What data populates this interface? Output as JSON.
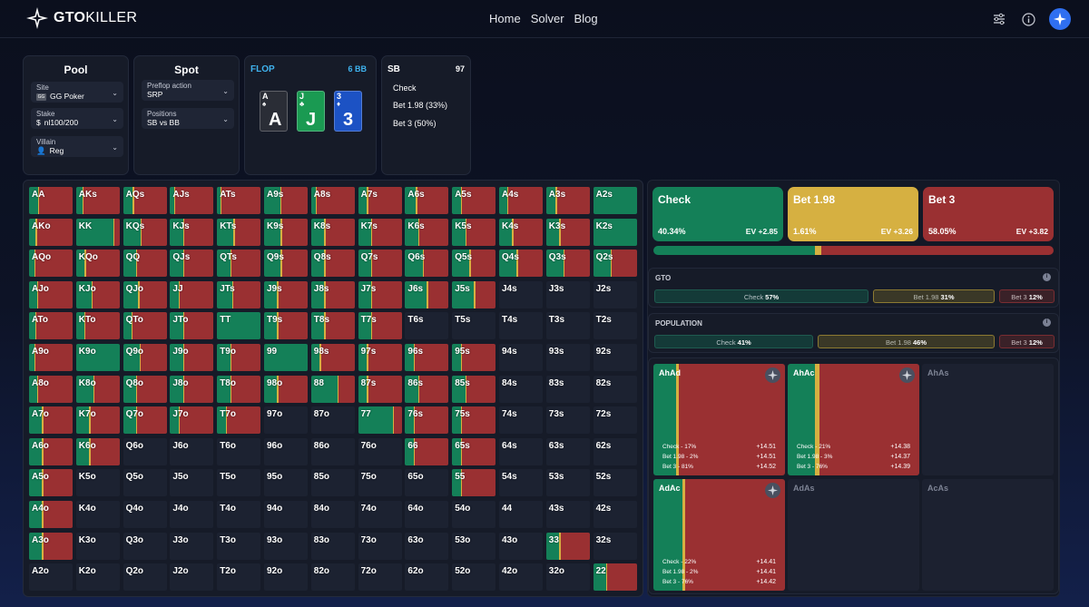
{
  "nav": {
    "logo_bold": "GTO",
    "logo_rest": "KILLER",
    "links": [
      "Home",
      "Solver",
      "Blog"
    ],
    "icons": [
      "sliders-icon",
      "info-icon",
      "avatar-icon"
    ]
  },
  "pool": {
    "title": "Pool",
    "site_label": "Site",
    "site": "GG Poker",
    "stake_label": "Stake",
    "stake": "nl100/200",
    "villain_label": "Villain",
    "villain": "Reg"
  },
  "spot": {
    "title": "Spot",
    "preflop_label": "Preflop action",
    "preflop": "SRP",
    "positions_label": "Positions",
    "positions": "SB vs BB"
  },
  "flop": {
    "title": "FLOP",
    "pot": "6 BB",
    "cards": [
      {
        "rank": "A",
        "suit": "♠",
        "color": "#2a2d36"
      },
      {
        "rank": "J",
        "suit": "♣",
        "color": "#1a9a52"
      },
      {
        "rank": "3",
        "suit": "♦",
        "color": "#1c52c4"
      }
    ]
  },
  "sb": {
    "title": "SB",
    "count": "97",
    "actions": [
      "Check",
      "Bet 1.98 (33%)",
      "Bet 3 (50%)"
    ]
  },
  "colors": {
    "check": "#148058",
    "bet198": "#d6b041",
    "bet3": "#9a3032",
    "empty": "#1c2231"
  },
  "hand_grid": {
    "ranks": [
      "A",
      "K",
      "Q",
      "J",
      "T",
      "9",
      "8",
      "7",
      "6",
      "5",
      "4",
      "3",
      "2"
    ],
    "rows": [
      [
        [
          20,
          2,
          78
        ],
        [
          15,
          3,
          82
        ],
        [
          22,
          3,
          75
        ],
        [
          10,
          2,
          88
        ],
        [
          8,
          2,
          90
        ],
        [
          38,
          2,
          60
        ],
        [
          10,
          2,
          88
        ],
        [
          20,
          3,
          77
        ],
        [
          25,
          3,
          72
        ],
        [
          20,
          3,
          77
        ],
        [
          18,
          3,
          79
        ],
        [
          22,
          3,
          75
        ],
        [
          100,
          0,
          0
        ]
      ],
      [
        [
          15,
          3,
          82
        ],
        [
          85,
          2,
          13
        ],
        [
          40,
          3,
          57
        ],
        [
          30,
          3,
          67
        ],
        [
          38,
          3,
          59
        ],
        [
          38,
          3,
          59
        ],
        [
          30,
          3,
          67
        ],
        [
          30,
          3,
          67
        ],
        [
          30,
          3,
          67
        ],
        [
          30,
          3,
          67
        ],
        [
          30,
          3,
          67
        ],
        [
          30,
          3,
          67
        ],
        [
          100,
          0,
          0
        ]
      ],
      [
        [
          12,
          2,
          86
        ],
        [
          20,
          3,
          77
        ],
        [
          30,
          3,
          67
        ],
        [
          30,
          3,
          67
        ],
        [
          30,
          3,
          67
        ],
        [
          38,
          3,
          59
        ],
        [
          30,
          3,
          67
        ],
        [
          30,
          3,
          67
        ],
        [
          40,
          3,
          57
        ],
        [
          40,
          3,
          57
        ],
        [
          40,
          3,
          57
        ],
        [
          40,
          3,
          57
        ],
        [
          40,
          3,
          57
        ]
      ],
      [
        [
          18,
          2,
          80
        ],
        [
          35,
          3,
          62
        ],
        [
          35,
          3,
          62
        ],
        [
          20,
          3,
          77
        ],
        [
          35,
          3,
          62
        ],
        [
          30,
          3,
          67
        ],
        [
          30,
          3,
          67
        ],
        [
          30,
          3,
          67
        ],
        [
          50,
          3,
          47
        ],
        [
          50,
          3,
          47
        ],
        [
          0,
          0,
          0
        ],
        [
          0,
          0,
          0
        ],
        [
          0,
          0,
          0
        ]
      ],
      [
        [
          15,
          2,
          83
        ],
        [
          20,
          2,
          78
        ],
        [
          20,
          2,
          78
        ],
        [
          30,
          3,
          67
        ],
        [
          100,
          0,
          0
        ],
        [
          30,
          3,
          67
        ],
        [
          30,
          3,
          67
        ],
        [
          30,
          3,
          67
        ],
        [
          0,
          0,
          0
        ],
        [
          0,
          0,
          0
        ],
        [
          0,
          0,
          0
        ],
        [
          0,
          0,
          0
        ],
        [
          0,
          0,
          0
        ]
      ],
      [
        [
          12,
          2,
          86
        ],
        [
          100,
          0,
          0
        ],
        [
          38,
          3,
          59
        ],
        [
          30,
          3,
          67
        ],
        [
          30,
          3,
          67
        ],
        [
          100,
          0,
          0
        ],
        [
          20,
          3,
          77
        ],
        [
          20,
          3,
          77
        ],
        [
          20,
          3,
          77
        ],
        [
          20,
          3,
          77
        ],
        [
          0,
          0,
          0
        ],
        [
          0,
          0,
          0
        ],
        [
          0,
          0,
          0
        ]
      ],
      [
        [
          18,
          2,
          80
        ],
        [
          40,
          3,
          57
        ],
        [
          30,
          3,
          67
        ],
        [
          30,
          3,
          67
        ],
        [
          30,
          3,
          67
        ],
        [
          30,
          3,
          67
        ],
        [
          60,
          3,
          37
        ],
        [
          20,
          3,
          77
        ],
        [
          30,
          3,
          67
        ],
        [
          30,
          3,
          67
        ],
        [
          0,
          0,
          0
        ],
        [
          0,
          0,
          0
        ],
        [
          0,
          0,
          0
        ]
      ],
      [
        [
          30,
          3,
          67
        ],
        [
          30,
          3,
          67
        ],
        [
          30,
          3,
          67
        ],
        [
          20,
          3,
          77
        ],
        [
          20,
          3,
          77
        ],
        [
          0,
          0,
          0
        ],
        [
          0,
          0,
          0
        ],
        [
          80,
          3,
          17
        ],
        [
          20,
          3,
          77
        ],
        [
          20,
          3,
          77
        ],
        [
          0,
          0,
          0
        ],
        [
          0,
          0,
          0
        ],
        [
          0,
          0,
          0
        ]
      ],
      [
        [
          30,
          3,
          67
        ],
        [
          30,
          3,
          67
        ],
        [
          0,
          0,
          0
        ],
        [
          0,
          0,
          0
        ],
        [
          0,
          0,
          0
        ],
        [
          0,
          0,
          0
        ],
        [
          0,
          0,
          0
        ],
        [
          0,
          0,
          0
        ],
        [
          20,
          3,
          77
        ],
        [
          20,
          3,
          77
        ],
        [
          0,
          0,
          0
        ],
        [
          0,
          0,
          0
        ],
        [
          0,
          0,
          0
        ]
      ],
      [
        [
          30,
          3,
          67
        ],
        [
          0,
          0,
          0
        ],
        [
          0,
          0,
          0
        ],
        [
          0,
          0,
          0
        ],
        [
          0,
          0,
          0
        ],
        [
          0,
          0,
          0
        ],
        [
          0,
          0,
          0
        ],
        [
          0,
          0,
          0
        ],
        [
          0,
          0,
          0
        ],
        [
          20,
          3,
          77
        ],
        [
          0,
          0,
          0
        ],
        [
          0,
          0,
          0
        ],
        [
          0,
          0,
          0
        ]
      ],
      [
        [
          30,
          3,
          67
        ],
        [
          0,
          0,
          0
        ],
        [
          0,
          0,
          0
        ],
        [
          0,
          0,
          0
        ],
        [
          0,
          0,
          0
        ],
        [
          0,
          0,
          0
        ],
        [
          0,
          0,
          0
        ],
        [
          0,
          0,
          0
        ],
        [
          0,
          0,
          0
        ],
        [
          0,
          0,
          0
        ],
        [
          0,
          0,
          0
        ],
        [
          0,
          0,
          0
        ],
        [
          0,
          0,
          0
        ]
      ],
      [
        [
          30,
          3,
          67
        ],
        [
          0,
          0,
          0
        ],
        [
          0,
          0,
          0
        ],
        [
          0,
          0,
          0
        ],
        [
          0,
          0,
          0
        ],
        [
          0,
          0,
          0
        ],
        [
          0,
          0,
          0
        ],
        [
          0,
          0,
          0
        ],
        [
          0,
          0,
          0
        ],
        [
          0,
          0,
          0
        ],
        [
          0,
          0,
          0
        ],
        [
          30,
          3,
          67
        ],
        [
          0,
          0,
          0
        ]
      ],
      [
        [
          0,
          0,
          0
        ],
        [
          0,
          0,
          0
        ],
        [
          0,
          0,
          0
        ],
        [
          0,
          0,
          0
        ],
        [
          0,
          0,
          0
        ],
        [
          0,
          0,
          0
        ],
        [
          0,
          0,
          0
        ],
        [
          0,
          0,
          0
        ],
        [
          0,
          0,
          0
        ],
        [
          0,
          0,
          0
        ],
        [
          0,
          0,
          0
        ],
        [
          0,
          0,
          0
        ],
        [
          30,
          3,
          67
        ]
      ]
    ]
  },
  "actions": [
    {
      "name": "Check",
      "pct": "40.34%",
      "ev": "EV +2.85",
      "value": 40.34,
      "color": "#148058"
    },
    {
      "name": "Bet 1.98",
      "pct": "1.61%",
      "ev": "EV +3.26",
      "value": 1.61,
      "color": "#d6b041"
    },
    {
      "name": "Bet 3",
      "pct": "58.05%",
      "ev": "EV +3.82",
      "value": 58.05,
      "color": "#9a3032"
    }
  ],
  "gto": {
    "title": "GTO",
    "check_label": "Check",
    "check": "57%",
    "check_value": 57,
    "bet198_label": "Bet 1.98",
    "bet198": "31%",
    "bet198_value": 31,
    "bet3_label": "Bet 3",
    "bet3": "12%",
    "bet3_value": 12
  },
  "population": {
    "title": "POPULATION",
    "check_label": "Check",
    "check": "41%",
    "check_value": 41,
    "bet198_label": "Bet 1.98",
    "bet198": "46%",
    "bet198_value": 46,
    "bet3_label": "Bet 3",
    "bet3": "12%",
    "bet3_value": 12
  },
  "combos": [
    {
      "name": "AhAd",
      "available": true,
      "check": 17,
      "bet198": 2,
      "bet3": 81,
      "lines": [
        [
          "Check - 17%",
          "+14.51"
        ],
        [
          "Bet 1.98 - 2%",
          "+14.51"
        ],
        [
          "Bet 3 - 81%",
          "+14.52"
        ]
      ]
    },
    {
      "name": "AhAc",
      "available": true,
      "check": 21,
      "bet198": 3,
      "bet3": 76,
      "lines": [
        [
          "Check - 21%",
          "+14.38"
        ],
        [
          "Bet 1.98 - 3%",
          "+14.37"
        ],
        [
          "Bet 3 - 76%",
          "+14.39"
        ]
      ]
    },
    {
      "name": "AhAs",
      "available": false
    },
    {
      "name": "AdAc",
      "available": true,
      "check": 22,
      "bet198": 2,
      "bet3": 76,
      "lines": [
        [
          "Check - 22%",
          "+14.41"
        ],
        [
          "Bet 1.98 - 2%",
          "+14.41"
        ],
        [
          "Bet 3 - 76%",
          "+14.42"
        ]
      ]
    },
    {
      "name": "AdAs",
      "available": false
    },
    {
      "name": "AcAs",
      "available": false
    }
  ]
}
